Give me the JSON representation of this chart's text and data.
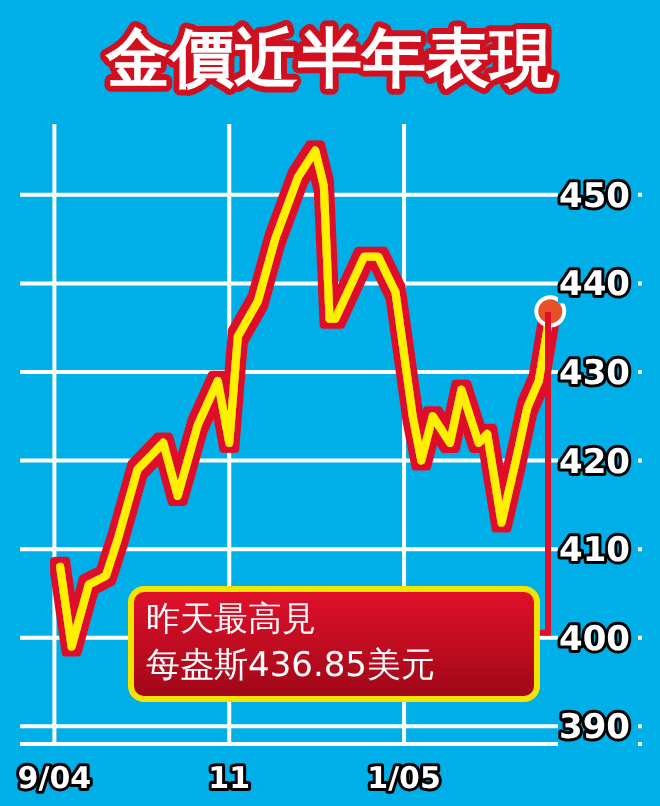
{
  "chart_data": {
    "type": "line",
    "title": "金價近半年表現",
    "xlim": [
      "2004-08-20",
      "2005-03-25"
    ],
    "xticks": [
      {
        "value": "2004-09-01",
        "label": "9/04"
      },
      {
        "value": "2004-11-01",
        "label": "11"
      },
      {
        "value": "2005-01-01",
        "label": "1/05"
      }
    ],
    "ylim": [
      388,
      458
    ],
    "yticks": [
      390,
      400,
      410,
      420,
      430,
      440,
      450
    ],
    "grid": true,
    "series": [
      {
        "color": "#fff000",
        "x": [
          "2004-09-03",
          "2004-09-07",
          "2004-09-13",
          "2004-09-19",
          "2004-09-23",
          "2004-09-30",
          "2004-10-09",
          "2004-10-14",
          "2004-10-21",
          "2004-10-28",
          "2004-11-01",
          "2004-11-04",
          "2004-11-11",
          "2004-11-17",
          "2004-11-25",
          "2004-12-01",
          "2004-12-04",
          "2004-12-06",
          "2004-12-08",
          "2004-12-18",
          "2004-12-23",
          "2004-12-29",
          "2005-01-04",
          "2005-01-07",
          "2005-01-11",
          "2005-01-17",
          "2005-01-21",
          "2005-01-27",
          "2005-01-30",
          "2005-02-04",
          "2005-02-09",
          "2005-02-13",
          "2005-02-17",
          "2005-02-21"
        ],
        "values": [
          408,
          399,
          406,
          407,
          411,
          419,
          422,
          416,
          424,
          429,
          422,
          434,
          438,
          445,
          452,
          455,
          451,
          436,
          436,
          443,
          443,
          439,
          425,
          420,
          425,
          422,
          428,
          422,
          423,
          413,
          420,
          426,
          429,
          436.85
        ]
      },
      {
        "type": "scatter",
        "color": "#e8502a",
        "x": [
          "2005-02-21"
        ],
        "values": [
          436.85
        ]
      }
    ],
    "annotations": [
      "昨天最高見",
      "每盎斯436.85美元"
    ]
  }
}
